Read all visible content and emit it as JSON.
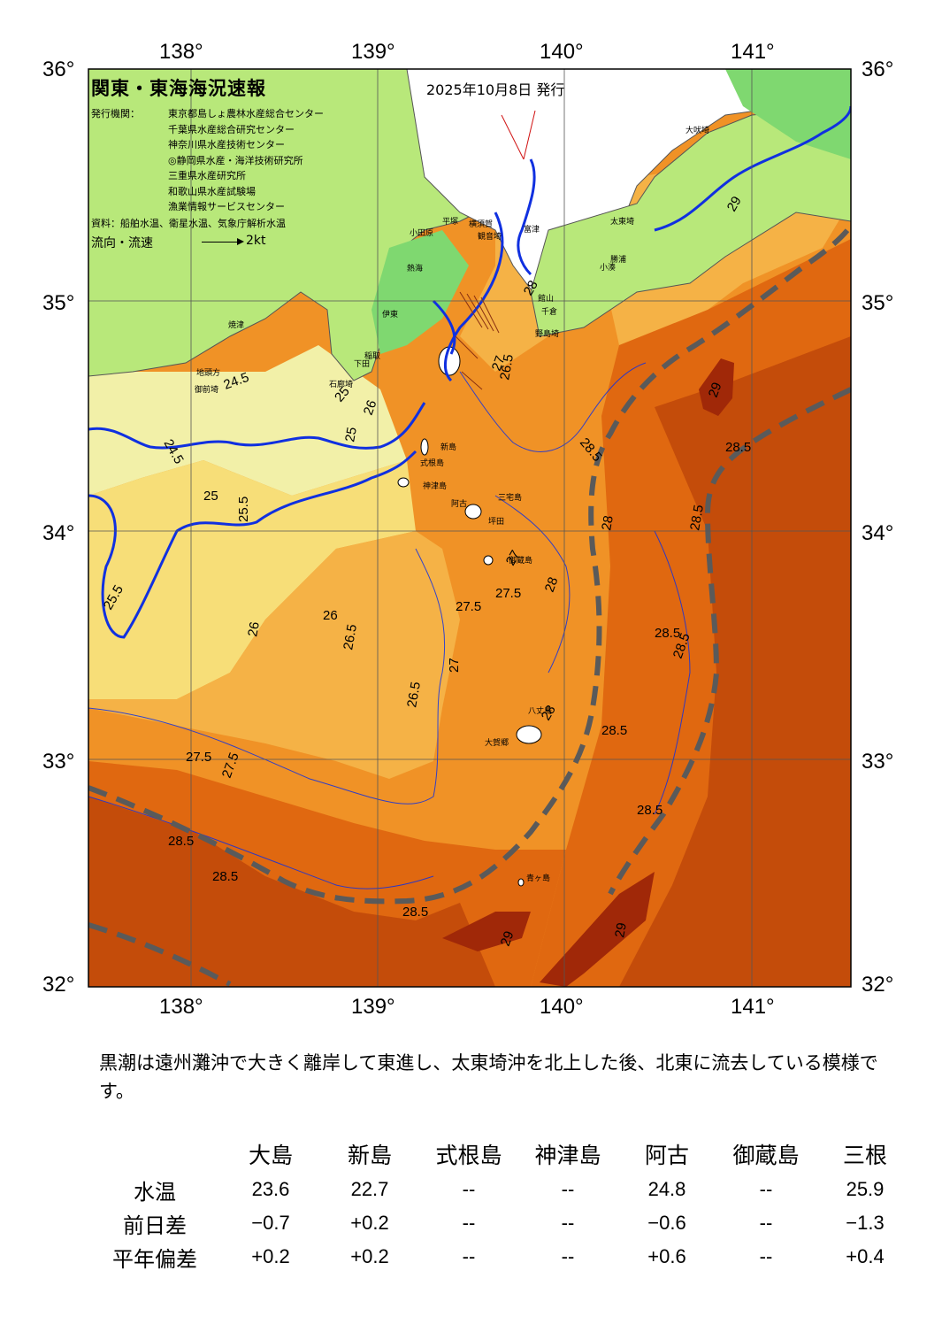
{
  "title": "関東・東海海況速報",
  "issue_date": "2025年10月8日 発行",
  "publisher": {
    "label": "発行機関：",
    "organizations": [
      "東京都島しょ農林水産総合センター",
      "千葉県水産総合研究センター",
      "神奈川県水産技術センター",
      "◎静岡県水産・海洋技術研究所",
      "三重県水産研究所",
      "和歌山県水産試験場",
      "漁業情報サービスセンター"
    ]
  },
  "source": "資料：船舶水温、衛星水温、気象庁解析水温",
  "flow_legend": {
    "label": "流向・流速",
    "scale": "2kt"
  },
  "axes": {
    "longitudes": [
      "138°",
      "139°",
      "140°",
      "141°"
    ],
    "latitudes": [
      "36°",
      "35°",
      "34°",
      "33°",
      "32°"
    ]
  },
  "isotherm_labels": [
    "24.5",
    "24.5",
    "25",
    "25",
    "25",
    "25.5",
    "25.5",
    "26",
    "26",
    "26",
    "26.5",
    "26.5",
    "26.5",
    "27",
    "27",
    "27",
    "27.5",
    "27.5",
    "27.5",
    "27.5",
    "28",
    "28",
    "28",
    "28",
    "28.5",
    "28.5",
    "28.5",
    "28.5",
    "28.5",
    "28.5",
    "28.5",
    "28.5",
    "28.5",
    "28.5",
    "29",
    "29",
    "29",
    "29"
  ],
  "place_names": [
    "大吠埼",
    "太東埼",
    "勝浦",
    "小湊",
    "館山",
    "千倉",
    "野島埼",
    "平塚",
    "横須賀",
    "観音埼",
    "富津",
    "小田原",
    "熱海",
    "伊東",
    "稲取",
    "下田",
    "石廊埼",
    "焼津",
    "地頭方",
    "御前埼",
    "新島",
    "式根島",
    "神津島",
    "三宅島",
    "阿古",
    "坪田",
    "御蔵島",
    "八丈島",
    "大賀郷",
    "青ヶ島"
  ],
  "summary": "黒潮は遠州灘沖で大きく離岸して東進し、太東埼沖を北上した後、北東に流去している模様です。",
  "colors": {
    "kuroshio_axis": "#5a5a5a",
    "isotherm_blue": "#1030e0",
    "t_24": "#f2f0a8",
    "t_25": "#f7de78",
    "t_26": "#f5b246",
    "t_27": "#f09226",
    "t_28": "#e06810",
    "t_285": "#c44c0a",
    "t_29": "#a02808",
    "land_low": "#b8e87a",
    "land_high": "#7fd870"
  },
  "observations": {
    "stations": [
      "大島",
      "新島",
      "式根島",
      "神津島",
      "阿古",
      "御蔵島",
      "三根"
    ],
    "rows": [
      {
        "label": "水温",
        "values": [
          "23.6",
          "22.7",
          "--",
          "--",
          "24.8",
          "--",
          "25.9"
        ]
      },
      {
        "label": "前日差",
        "values": [
          "−0.7",
          "+0.2",
          "--",
          "--",
          "−0.6",
          "--",
          "−1.3"
        ]
      },
      {
        "label": "平年偏差",
        "values": [
          "+0.2",
          "+0.2",
          "--",
          "--",
          "+0.6",
          "--",
          "+0.4"
        ]
      }
    ]
  }
}
